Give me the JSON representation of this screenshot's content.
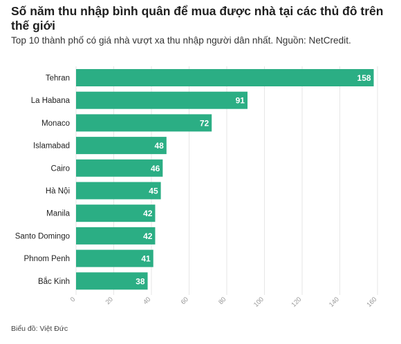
{
  "header": {
    "title": "Số năm thu nhập bình quân để mua được nhà tại các thủ đô trên thế giới",
    "subtitle": "Top 10 thành phố có giá nhà vượt xa thu nhập người dân nhất. Nguồn: NetCredit."
  },
  "footer": {
    "credit": "Biểu đồ: Việt Đức"
  },
  "colors": {
    "bar": "#2bae84",
    "label_text": "#ffffff",
    "axis_text": "#999999",
    "category_text": "#222222",
    "grid": "#e6e6e6"
  },
  "chart_data": {
    "type": "bar",
    "orientation": "horizontal",
    "categories": [
      "Tehran",
      "La Habana",
      "Monaco",
      "Islamabad",
      "Cairo",
      "Hà Nội",
      "Manila",
      "Santo Domingo",
      "Phnom Penh",
      "Bắc Kinh"
    ],
    "values": [
      158,
      91,
      72,
      48,
      46,
      45,
      42,
      42,
      41,
      38
    ],
    "xlim": [
      0,
      160
    ],
    "xticks": [
      0,
      20,
      40,
      60,
      80,
      100,
      120,
      140,
      160
    ],
    "data_labels": true,
    "grid": true
  }
}
